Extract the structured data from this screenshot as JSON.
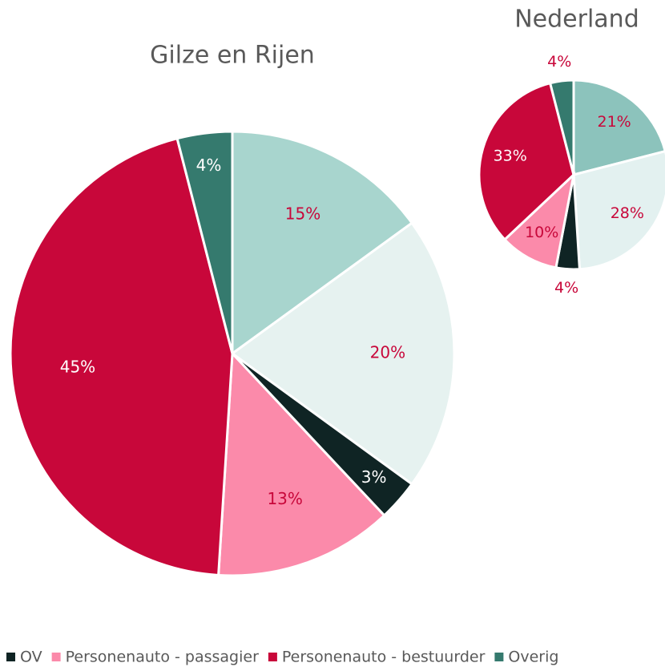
{
  "chart_data": [
    {
      "type": "pie",
      "title": "Gilze en Rijen",
      "categories": [
        null,
        null,
        "OV",
        "Personenauto - passagier",
        "Personenauto - bestuurder",
        "Overig"
      ],
      "values": [
        15,
        20,
        3,
        13,
        45,
        4
      ],
      "value_labels": [
        "15%",
        "20%",
        "3%",
        "13%",
        "45%",
        "4%"
      ],
      "colors": [
        "#a8d5ce",
        "#e6f2f0",
        "#0f2424",
        "#fb8aaa",
        "#c8073a",
        "#357a6e"
      ]
    },
    {
      "type": "pie",
      "title": "Nederland",
      "values": [
        21,
        28,
        4,
        10,
        33,
        4
      ],
      "value_labels": [
        "21%",
        "28%",
        "4%",
        "10%",
        "33%",
        "4%"
      ],
      "colors": [
        "#8cc3bc",
        "#e3f1f0",
        "#0f2424",
        "#fb8aaa",
        "#c8073a",
        "#357a6e"
      ]
    }
  ]
}
